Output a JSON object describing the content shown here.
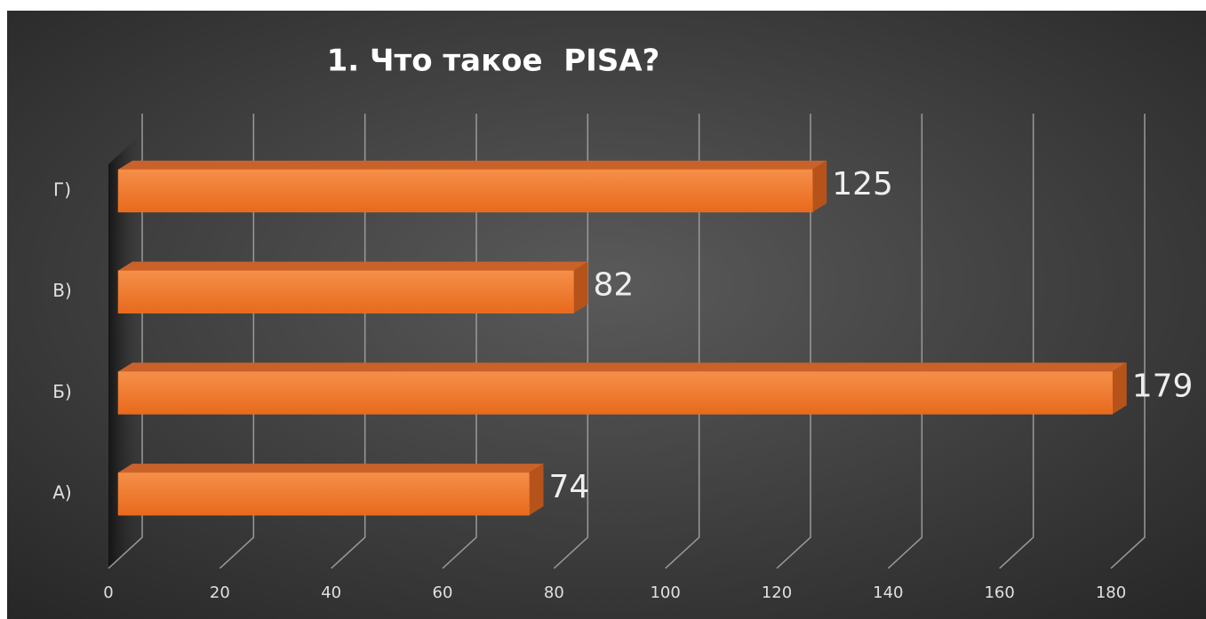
{
  "chart_data": {
    "type": "bar3d_horizontal",
    "title": "1. Что такое  PISA?",
    "categories": [
      "А)",
      "Б)",
      "В)",
      "Г)"
    ],
    "values": [
      74,
      179,
      82,
      125
    ],
    "color": "#f0782a",
    "xlim": [
      0,
      180
    ],
    "xticks": [
      0,
      20,
      40,
      60,
      80,
      100,
      120,
      140,
      160,
      180
    ],
    "grid": true
  }
}
